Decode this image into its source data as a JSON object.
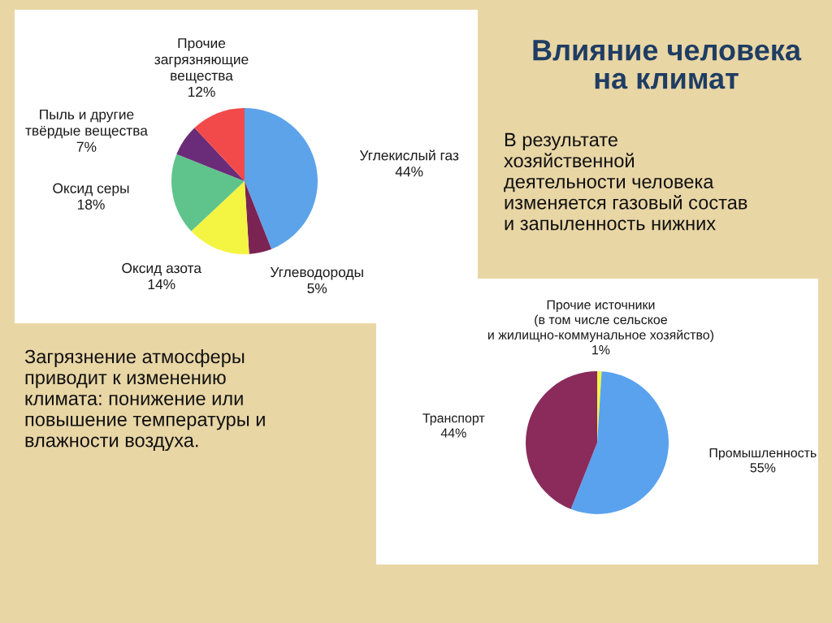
{
  "chart_data": [
    {
      "type": "pie",
      "categories": [
        "Углекислый газ",
        "Углеводороды",
        "Оксид азота",
        "Оксид серы",
        "Пыль и другие\nтвёрдые вещества",
        "Прочие\nзагрязняющие\nвещества"
      ],
      "values": [
        44,
        5,
        14,
        18,
        7,
        12
      ],
      "colors": [
        "#5da3ea",
        "#7b2352",
        "#f4f442",
        "#5ec48c",
        "#6a2b78",
        "#f24a4a"
      ],
      "value_labels": [
        "44%",
        "5%",
        "14%",
        "18%",
        "7%",
        "12%"
      ]
    },
    {
      "type": "other",
      "title": "Влияние человека\nна климат",
      "annotations": [
        "В результате\nхозяйственной\nдеятельности человека\nизменяется газовый состав\nи запыленность нижних",
        "Загрязнение атмосферы\nприводит к изменению\nклимата: понижение или\nповышение температуры и\nвлажности воздуха."
      ]
    },
    {
      "type": "pie",
      "categories": [
        "Прочие источники\n(в том числе сельское\nи жилищно-коммунальное хозяйство)",
        "Промышленность",
        "Транспорт"
      ],
      "values": [
        1,
        55,
        44
      ],
      "colors": [
        "#f4f442",
        "#5aa2ee",
        "#8a2b5c"
      ],
      "value_labels": [
        "1%",
        "55%",
        "44%"
      ]
    }
  ]
}
